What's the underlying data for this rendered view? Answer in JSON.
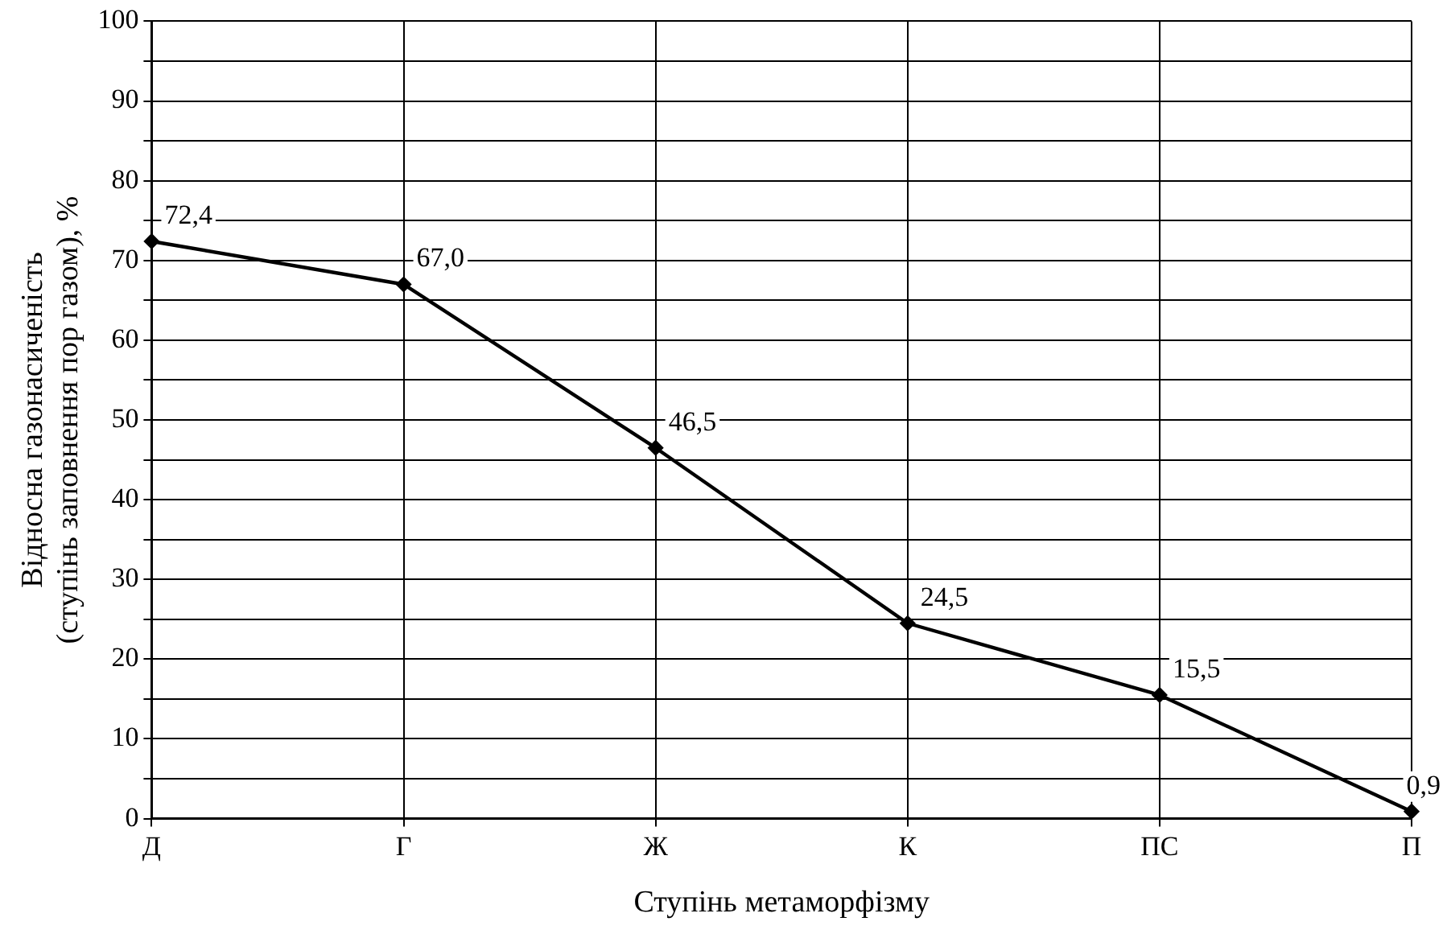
{
  "chart_data": {
    "type": "line",
    "xlabel": "Ступінь метаморфізму",
    "ylabel": "Відносна газонасиченість\n(ступінь заповнення пор газом), %",
    "categories": [
      "Д",
      "Г",
      "Ж",
      "К",
      "ПС",
      "П"
    ],
    "series": [
      {
        "color": "#000000",
        "values": [
          72.4,
          67.0,
          46.5,
          24.5,
          15.5,
          0.9
        ],
        "value_labels": [
          "72,4",
          "67,0",
          "46,5",
          "24,5",
          "15,5",
          "0,9"
        ]
      }
    ],
    "ylim": [
      0,
      100
    ],
    "yticks": [
      0,
      {
        "value": 5,
        "label": null
      },
      10,
      {
        "value": 15,
        "label": null
      },
      20,
      {
        "value": 25,
        "label": null
      },
      30,
      {
        "value": 35,
        "label": null
      },
      40,
      {
        "value": 45,
        "label": null
      },
      50,
      {
        "value": 55,
        "label": null
      },
      60,
      {
        "value": 65,
        "label": null
      },
      70,
      {
        "value": 75,
        "label": null
      },
      80,
      {
        "value": 85,
        "label": null
      },
      90,
      {
        "value": 95,
        "label": null
      },
      100
    ],
    "grid": true,
    "marker": "diamond",
    "line_style": "solid",
    "legend": false
  }
}
